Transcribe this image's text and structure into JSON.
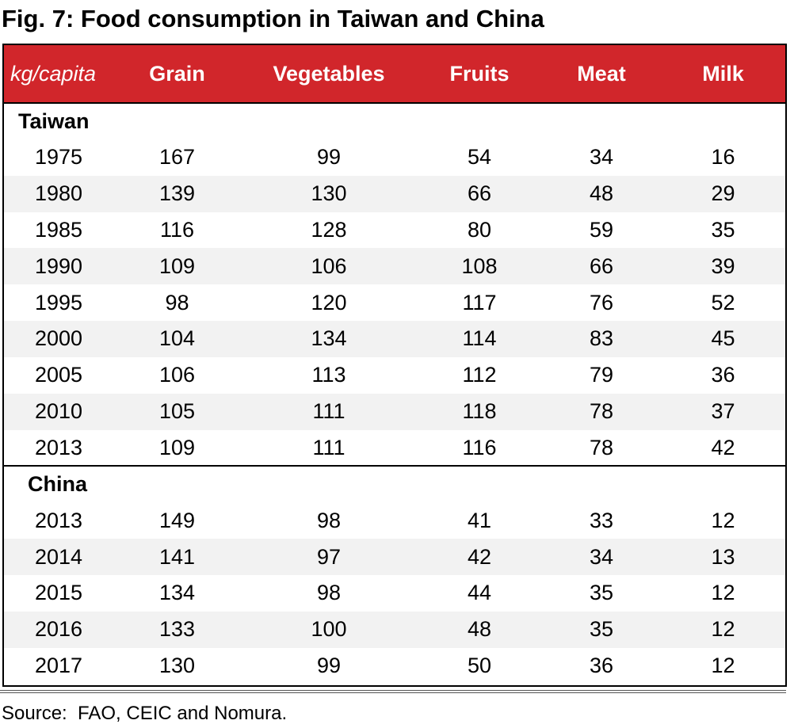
{
  "title": "Fig. 7: Food consumption in Taiwan and China",
  "table": {
    "columns": [
      "kg/capita",
      "Grain",
      "Vegetables",
      "Fruits",
      "Meat",
      "Milk"
    ],
    "groups": [
      {
        "name": "Taiwan",
        "rows": [
          [
            "1975",
            "167",
            "99",
            "54",
            "34",
            "16"
          ],
          [
            "1980",
            "139",
            "130",
            "66",
            "48",
            "29"
          ],
          [
            "1985",
            "116",
            "128",
            "80",
            "59",
            "35"
          ],
          [
            "1990",
            "109",
            "106",
            "108",
            "66",
            "39"
          ],
          [
            "1995",
            "98",
            "120",
            "117",
            "76",
            "52"
          ],
          [
            "2000",
            "104",
            "134",
            "114",
            "83",
            "45"
          ],
          [
            "2005",
            "106",
            "113",
            "112",
            "79",
            "36"
          ],
          [
            "2010",
            "105",
            "111",
            "118",
            "78",
            "37"
          ],
          [
            "2013",
            "109",
            "111",
            "116",
            "78",
            "42"
          ]
        ]
      },
      {
        "name": "China",
        "rows": [
          [
            "2013",
            "149",
            "98",
            "41",
            "33",
            "12"
          ],
          [
            "2014",
            "141",
            "97",
            "42",
            "34",
            "13"
          ],
          [
            "2015",
            "134",
            "98",
            "44",
            "35",
            "12"
          ],
          [
            "2016",
            "133",
            "100",
            "48",
            "35",
            "12"
          ],
          [
            "2017",
            "130",
            "99",
            "50",
            "36",
            "12"
          ]
        ]
      }
    ]
  },
  "source": "Source:  FAO, CEIC and Nomura.",
  "colors": {
    "header_background": "#d1262b",
    "header_text": "#ffffff",
    "shaded_row": "#f2f2f2"
  }
}
